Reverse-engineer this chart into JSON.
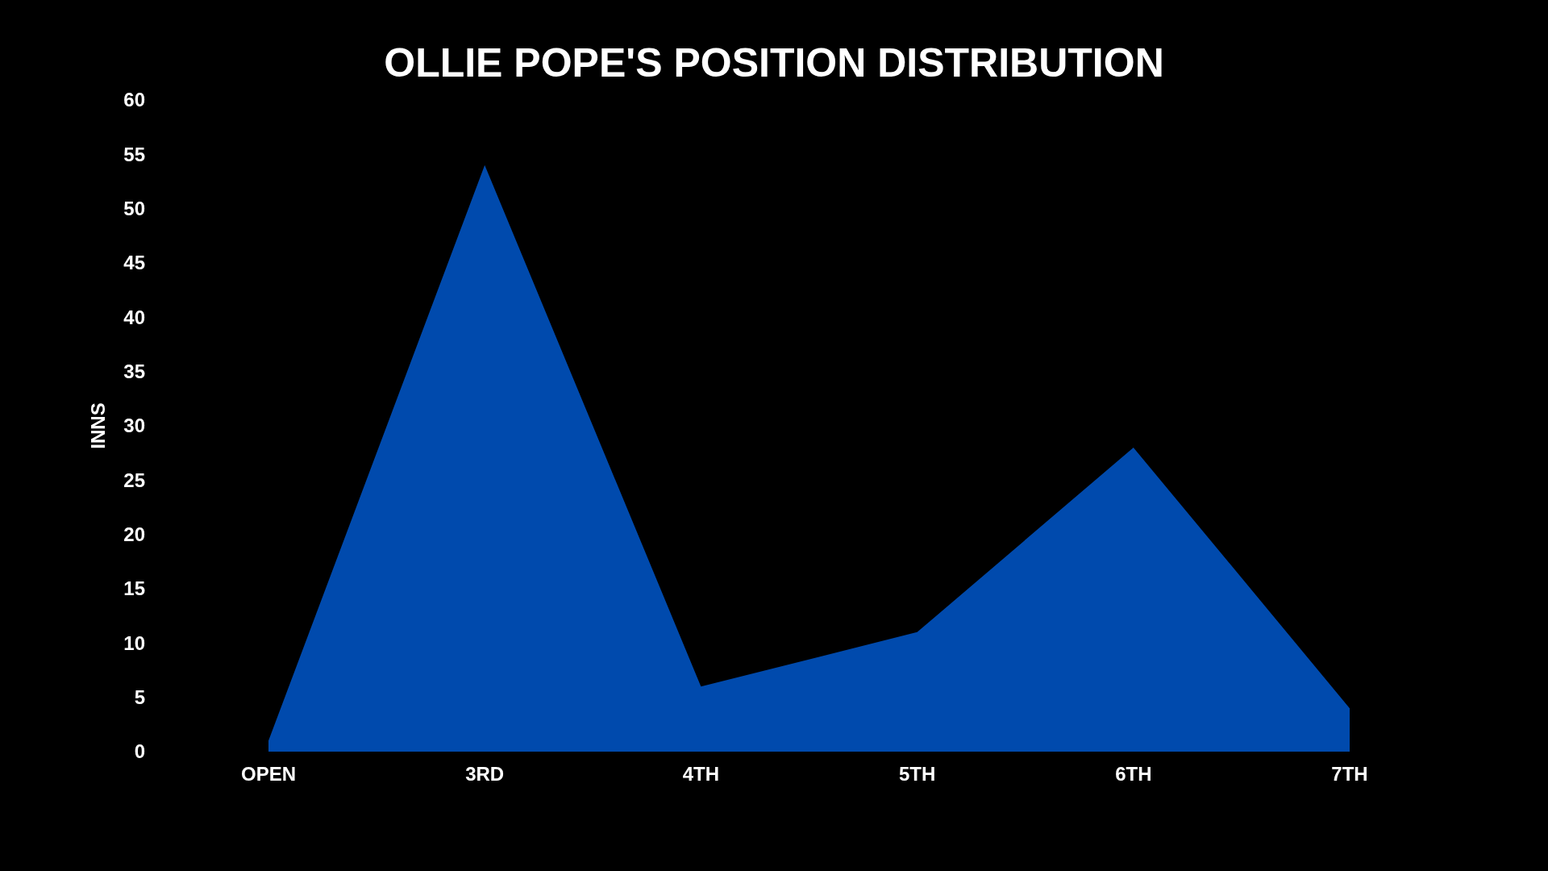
{
  "chart_data": {
    "type": "area",
    "title": "OLLIE POPE'S POSITION DISTRIBUTION",
    "ylabel": "INNS",
    "categories": [
      "OPEN",
      "3RD",
      "4TH",
      "5TH",
      "6TH",
      "7TH"
    ],
    "series": [
      {
        "color": "#004aad",
        "values": [
          1,
          54,
          6,
          11,
          28,
          4
        ]
      }
    ],
    "ylim": [
      0,
      60
    ],
    "yticks": [
      0,
      5,
      10,
      15,
      20,
      25,
      30,
      35,
      40,
      45,
      50,
      55,
      60
    ]
  }
}
